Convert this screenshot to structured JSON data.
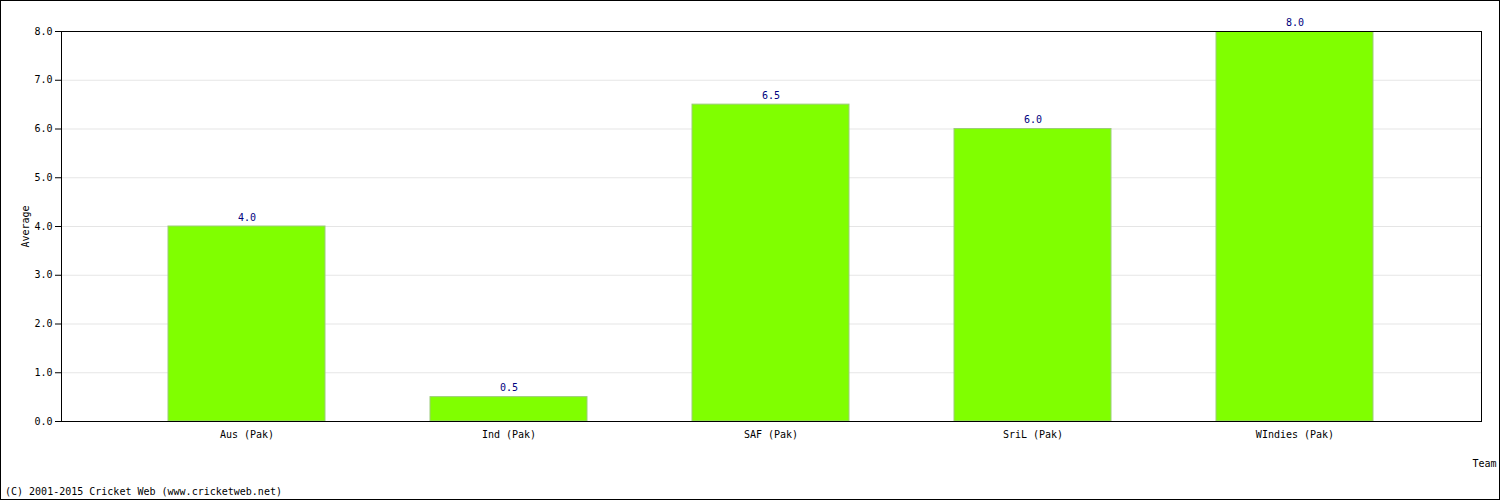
{
  "chart_data": {
    "type": "bar",
    "caption": "(C) 2001-2015 Cricket Web (www.cricketweb.net)",
    "x_label": "Team",
    "y_label": "Average",
    "categories": [
      "Aus (Pak)",
      "Ind (Pak)",
      "SAF (Pak)",
      "SriL (Pak)",
      "WIndies (Pak)"
    ],
    "values": [
      4.0,
      0.5,
      6.5,
      6.0,
      8.0
    ],
    "value_labels": [
      "4.0",
      "0.5",
      "6.5",
      "6.0",
      "8.0"
    ],
    "color": "#80ff00",
    "data_labels": true,
    "grid": true,
    "ylim": [
      0,
      8
    ],
    "yticks": [
      {
        "value": 0,
        "label": "0.0"
      },
      {
        "value": 1,
        "label": "1.0"
      },
      {
        "value": 2,
        "label": "2.0"
      },
      {
        "value": 3,
        "label": "3.0"
      },
      {
        "value": 4,
        "label": "4.0"
      },
      {
        "value": 5,
        "label": "5.0"
      },
      {
        "value": 6,
        "label": "6.0"
      },
      {
        "value": 7,
        "label": "7.0"
      },
      {
        "value": 8,
        "label": "8.0"
      }
    ]
  }
}
